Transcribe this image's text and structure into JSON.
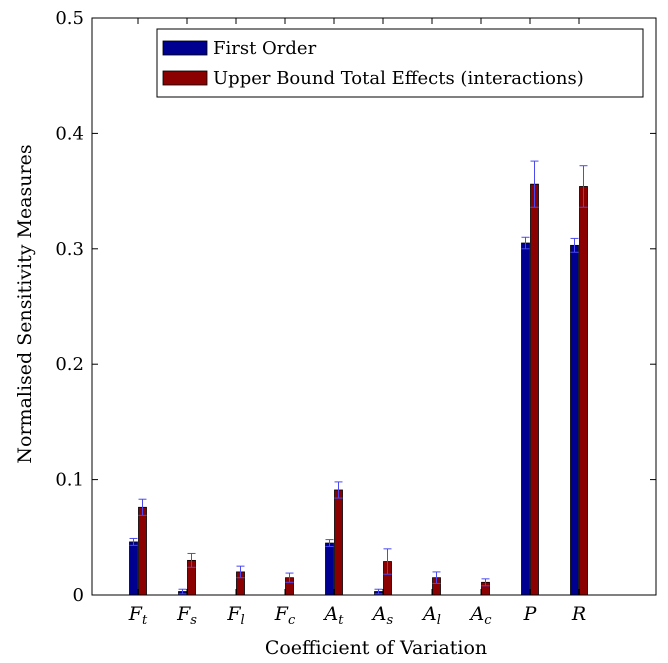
{
  "chart_data": {
    "type": "bar",
    "xlabel": "Coefficient of Variation",
    "ylabel": "Normalised Sensitivity Measures",
    "ylim": [
      0,
      0.5
    ],
    "yticks": [
      "0",
      "0.1",
      "0.2",
      "0.3",
      "0.4",
      "0.5"
    ],
    "ytick_values": [
      0,
      0.1,
      0.2,
      0.3,
      0.4,
      0.5
    ],
    "categories": [
      {
        "base": "F",
        "sub": "t"
      },
      {
        "base": "F",
        "sub": "s"
      },
      {
        "base": "F",
        "sub": "l"
      },
      {
        "base": "F",
        "sub": "c"
      },
      {
        "base": "A",
        "sub": "t"
      },
      {
        "base": "A",
        "sub": "s"
      },
      {
        "base": "A",
        "sub": "l"
      },
      {
        "base": "A",
        "sub": "c"
      },
      {
        "base": "P",
        "sub": ""
      },
      {
        "base": "R",
        "sub": ""
      }
    ],
    "series": [
      {
        "name": "First Order",
        "color": "#000090",
        "values": [
          0.046,
          0.003,
          0.0,
          0.0,
          0.045,
          0.003,
          0.0,
          0.0,
          0.305,
          0.303
        ],
        "errors": [
          0.003,
          0.002,
          0.0,
          0.0,
          0.003,
          0.002,
          0.0,
          0.0,
          0.005,
          0.006
        ]
      },
      {
        "name": "Upper Bound Total Effects (interactions)",
        "color": "#8b0000",
        "values": [
          0.076,
          0.03,
          0.02,
          0.015,
          0.091,
          0.029,
          0.015,
          0.011,
          0.356,
          0.354
        ],
        "errors": [
          0.007,
          0.006,
          0.005,
          0.004,
          0.007,
          0.011,
          0.005,
          0.003,
          0.02,
          0.018
        ]
      }
    ],
    "error_bar_color": "#4a4af0",
    "legend_position": "top-right",
    "grid": false
  }
}
